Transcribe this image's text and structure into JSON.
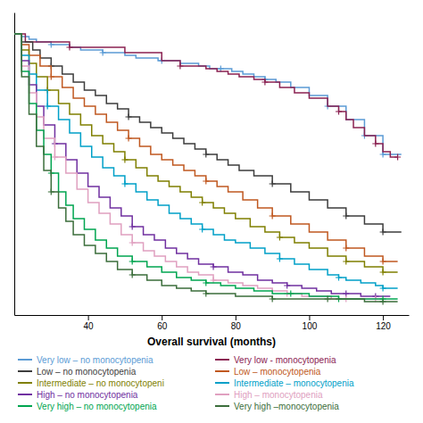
{
  "chart_data": {
    "type": "step",
    "xlabel": "Overall survival (months)",
    "xlim": [
      20,
      127
    ],
    "ylim": [
      -0.05,
      1.08
    ],
    "xticks": [
      40,
      60,
      80,
      100,
      120
    ],
    "tick_labels": "x",
    "grid": false,
    "legend": "bottom",
    "series": [
      {
        "name": "Very low – no monocytopenia",
        "color": "#5B9BD5",
        "x": [
          20,
          22,
          24,
          26,
          28,
          30,
          32,
          35,
          38,
          41,
          44,
          47,
          50,
          53,
          56,
          59,
          62,
          65,
          68,
          70,
          73,
          76,
          79,
          82,
          85,
          88,
          91,
          95,
          100,
          105,
          110,
          115,
          120,
          125
        ],
        "values": [
          1.0,
          0.99,
          0.98,
          0.97,
          0.97,
          0.96,
          0.96,
          0.95,
          0.94,
          0.94,
          0.93,
          0.93,
          0.92,
          0.91,
          0.91,
          0.9,
          0.9,
          0.89,
          0.89,
          0.88,
          0.87,
          0.87,
          0.86,
          0.85,
          0.84,
          0.83,
          0.82,
          0.8,
          0.77,
          0.73,
          0.68,
          0.62,
          0.55,
          0.55
        ],
        "censor_x": [
          30,
          44,
          60,
          76,
          88,
          105,
          115,
          120
        ],
        "censor_values": [
          0.96,
          0.93,
          0.9,
          0.87,
          0.83,
          0.73,
          0.62,
          0.55
        ]
      },
      {
        "name": "Very low - monocytopenia",
        "color": "#8B2252",
        "x": [
          20,
          23,
          35,
          50,
          60,
          65,
          70,
          72,
          75,
          78,
          81,
          85,
          88,
          92,
          96,
          100,
          105,
          108,
          110,
          112,
          115,
          118,
          120,
          122,
          124
        ],
        "values": [
          1.0,
          0.97,
          0.95,
          0.93,
          0.9,
          0.88,
          0.88,
          0.87,
          0.86,
          0.85,
          0.84,
          0.83,
          0.82,
          0.8,
          0.78,
          0.76,
          0.73,
          0.71,
          0.68,
          0.65,
          0.62,
          0.59,
          0.56,
          0.54,
          0.54
        ],
        "censor_x": [
          35,
          65,
          88,
          108,
          118,
          124
        ],
        "censor_values": [
          0.95,
          0.88,
          0.82,
          0.71,
          0.59,
          0.54
        ]
      },
      {
        "name": "Low – no monocytopenia",
        "color": "#3D3D3D",
        "x": [
          20,
          22,
          25,
          27,
          30,
          33,
          36,
          39,
          42,
          45,
          48,
          51,
          54,
          57,
          60,
          63,
          66,
          69,
          72,
          75,
          78,
          81,
          85,
          90,
          95,
          100,
          105,
          110,
          115,
          120,
          125
        ],
        "values": [
          1.0,
          0.97,
          0.94,
          0.91,
          0.88,
          0.85,
          0.82,
          0.79,
          0.77,
          0.74,
          0.72,
          0.69,
          0.67,
          0.65,
          0.63,
          0.61,
          0.59,
          0.57,
          0.55,
          0.53,
          0.51,
          0.49,
          0.47,
          0.44,
          0.41,
          0.38,
          0.35,
          0.32,
          0.29,
          0.26,
          0.26
        ],
        "censor_x": [
          30,
          51,
          72,
          90,
          110,
          120
        ],
        "censor_values": [
          0.88,
          0.69,
          0.55,
          0.44,
          0.32,
          0.26
        ]
      },
      {
        "name": "Low – monocytopenia",
        "color": "#C05820",
        "x": [
          20,
          22,
          24,
          27,
          30,
          33,
          36,
          39,
          42,
          45,
          48,
          51,
          54,
          57,
          60,
          63,
          66,
          69,
          72,
          75,
          78,
          82,
          86,
          90,
          95,
          100,
          105,
          110,
          115,
          120,
          124
        ],
        "values": [
          1.0,
          0.96,
          0.92,
          0.88,
          0.84,
          0.8,
          0.76,
          0.73,
          0.7,
          0.67,
          0.64,
          0.61,
          0.58,
          0.55,
          0.53,
          0.51,
          0.49,
          0.47,
          0.45,
          0.43,
          0.41,
          0.38,
          0.35,
          0.32,
          0.29,
          0.26,
          0.23,
          0.2,
          0.17,
          0.15,
          0.15
        ],
        "censor_x": [
          30,
          51,
          72,
          90,
          110,
          120
        ],
        "censor_values": [
          0.84,
          0.61,
          0.45,
          0.32,
          0.2,
          0.15
        ]
      },
      {
        "name": "Intermediate – no monocytopeni",
        "color": "#7F7F00",
        "x": [
          20,
          22,
          24,
          26,
          29,
          32,
          35,
          38,
          41,
          44,
          47,
          50,
          53,
          56,
          59,
          62,
          65,
          68,
          71,
          74,
          77,
          80,
          84,
          88,
          92,
          96,
          100,
          105,
          110,
          115,
          120,
          124
        ],
        "values": [
          1.0,
          0.94,
          0.89,
          0.84,
          0.79,
          0.74,
          0.7,
          0.66,
          0.62,
          0.59,
          0.56,
          0.53,
          0.5,
          0.47,
          0.45,
          0.43,
          0.41,
          0.39,
          0.37,
          0.35,
          0.33,
          0.31,
          0.28,
          0.26,
          0.24,
          0.22,
          0.2,
          0.17,
          0.15,
          0.13,
          0.11,
          0.11
        ],
        "censor_x": [
          29,
          50,
          71,
          92,
          110,
          120
        ],
        "censor_values": [
          0.79,
          0.53,
          0.37,
          0.24,
          0.15,
          0.11
        ]
      },
      {
        "name": "Intermediate – monocytopenia",
        "color": "#00A0C8",
        "x": [
          20,
          22,
          24,
          26,
          29,
          32,
          35,
          38,
          41,
          44,
          47,
          50,
          53,
          56,
          59,
          62,
          65,
          68,
          71,
          74,
          77,
          80,
          84,
          88,
          92,
          96,
          100,
          105,
          108,
          110,
          114,
          118,
          120,
          124
        ],
        "values": [
          1.0,
          0.92,
          0.85,
          0.79,
          0.73,
          0.68,
          0.63,
          0.58,
          0.54,
          0.5,
          0.47,
          0.44,
          0.41,
          0.38,
          0.36,
          0.33,
          0.31,
          0.29,
          0.27,
          0.25,
          0.23,
          0.22,
          0.2,
          0.18,
          0.16,
          0.14,
          0.12,
          0.1,
          0.09,
          0.08,
          0.07,
          0.06,
          0.05,
          0.05
        ],
        "censor_x": [
          29,
          50,
          71,
          92,
          108,
          120
        ],
        "censor_values": [
          0.73,
          0.44,
          0.27,
          0.16,
          0.09,
          0.05
        ]
      },
      {
        "name": "High – no monocytopenia",
        "color": "#7030A0",
        "x": [
          20,
          22,
          24,
          26,
          28,
          31,
          34,
          37,
          40,
          43,
          46,
          49,
          52,
          55,
          58,
          61,
          64,
          67,
          70,
          74,
          78,
          82,
          86,
          90,
          94,
          98,
          102,
          106,
          110,
          114,
          118,
          122
        ],
        "values": [
          1.0,
          0.9,
          0.81,
          0.73,
          0.66,
          0.59,
          0.53,
          0.48,
          0.43,
          0.39,
          0.35,
          0.32,
          0.28,
          0.25,
          0.23,
          0.2,
          0.18,
          0.16,
          0.14,
          0.13,
          0.11,
          0.1,
          0.08,
          0.07,
          0.06,
          0.05,
          0.04,
          0.03,
          0.03,
          0.02,
          0.02,
          0.02
        ],
        "censor_x": [
          31,
          52,
          74,
          94,
          110,
          118
        ],
        "censor_values": [
          0.59,
          0.28,
          0.13,
          0.06,
          0.03,
          0.02
        ]
      },
      {
        "name": "High – monocytopenia",
        "color": "#E0A0C0",
        "x": [
          20,
          22,
          24,
          26,
          28,
          31,
          34,
          37,
          40,
          43,
          46,
          49,
          52,
          55,
          58,
          61,
          64,
          67,
          70,
          74,
          78,
          82,
          86,
          90,
          94,
          98,
          102,
          106,
          110,
          114,
          118,
          120
        ],
        "values": [
          1.0,
          0.88,
          0.78,
          0.69,
          0.61,
          0.54,
          0.48,
          0.42,
          0.37,
          0.33,
          0.29,
          0.25,
          0.22,
          0.19,
          0.17,
          0.15,
          0.13,
          0.11,
          0.1,
          0.08,
          0.07,
          0.06,
          0.05,
          0.04,
          0.03,
          0.02,
          0.02,
          0.01,
          0.01,
          0.01,
          0.01,
          0.01
        ],
        "censor_x": [
          31,
          52,
          74,
          94,
          110,
          118
        ],
        "censor_values": [
          0.54,
          0.22,
          0.08,
          0.03,
          0.01,
          0.01
        ]
      },
      {
        "name": "Very high – no monocytopenia",
        "color": "#00A550",
        "x": [
          20,
          22,
          24,
          26,
          28,
          30,
          32,
          34,
          36,
          39,
          42,
          45,
          48,
          52,
          56,
          60,
          64,
          68,
          72,
          76,
          80,
          85,
          90,
          95,
          100,
          103,
          106,
          108,
          110,
          115,
          120,
          124
        ],
        "values": [
          1.0,
          0.86,
          0.74,
          0.64,
          0.55,
          0.48,
          0.41,
          0.36,
          0.31,
          0.27,
          0.23,
          0.2,
          0.17,
          0.15,
          0.13,
          0.11,
          0.09,
          0.08,
          0.07,
          0.06,
          0.05,
          0.04,
          0.03,
          0.03,
          0.02,
          0.02,
          0.02,
          0.01,
          0.01,
          0.01,
          0.01,
          0.01
        ],
        "censor_x": [
          30,
          52,
          72,
          95,
          108,
          120
        ],
        "censor_values": [
          0.48,
          0.15,
          0.07,
          0.03,
          0.01,
          0.01
        ]
      },
      {
        "name": "Very high –monocytopenia",
        "color": "#3B6E3B",
        "x": [
          20,
          22,
          24,
          26,
          28,
          30,
          32,
          34,
          36,
          39,
          42,
          45,
          48,
          52,
          56,
          60,
          64,
          68,
          72,
          76,
          80,
          85,
          90,
          95,
          100,
          105,
          110,
          115,
          120,
          124
        ],
        "values": [
          1.0,
          0.84,
          0.7,
          0.58,
          0.49,
          0.41,
          0.35,
          0.3,
          0.25,
          0.21,
          0.18,
          0.15,
          0.12,
          0.1,
          0.08,
          0.06,
          0.05,
          0.04,
          0.03,
          0.03,
          0.02,
          0.02,
          0.01,
          0.01,
          0.01,
          0.01,
          0.01,
          0.0,
          0.0,
          0.0
        ],
        "censor_x": [
          30,
          52,
          72,
          90,
          105,
          120
        ],
        "censor_values": [
          0.41,
          0.1,
          0.03,
          0.01,
          0.01,
          0.0
        ]
      }
    ]
  }
}
